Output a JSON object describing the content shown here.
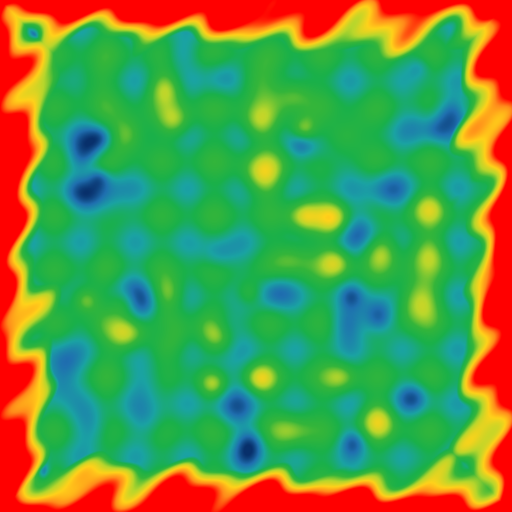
{
  "image": {
    "colormap": [
      "#08306b",
      "#1f6fb0",
      "#1aa3a3",
      "#19b04a",
      "#34b53a",
      "#b7d62c",
      "#ffd21a",
      "#ff8a1a",
      "#ff0000"
    ]
  }
}
